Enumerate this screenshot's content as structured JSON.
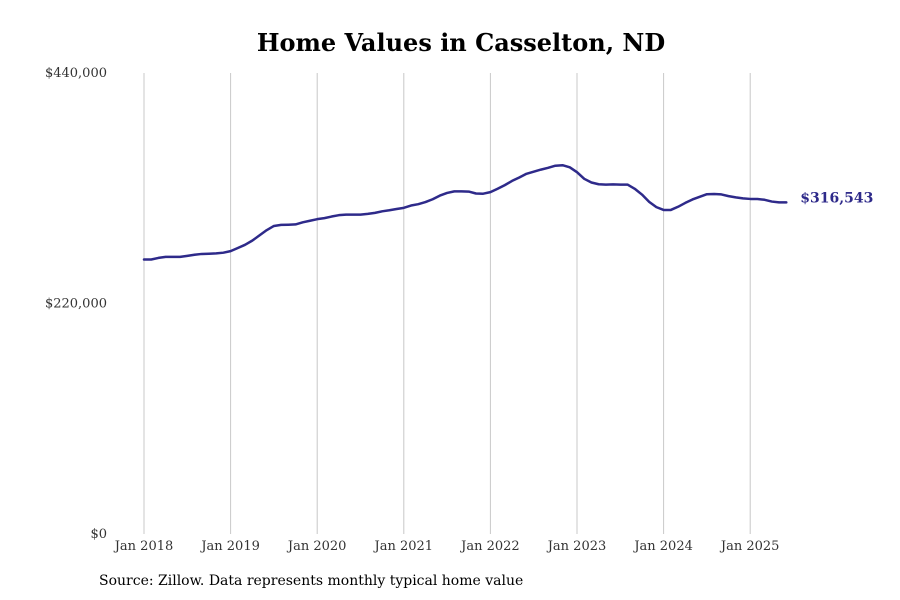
{
  "page": {
    "source_text": "Source: Zillow. Data represents monthly typical home value"
  },
  "chart_data": {
    "type": "line",
    "title": "Home Values in Casselton, ND",
    "xlabel": "",
    "ylabel": "",
    "ylim": [
      0,
      440000
    ],
    "y_ticks": [
      0,
      220000,
      440000
    ],
    "y_tick_labels": [
      "$0",
      "$220,000",
      "$440,000"
    ],
    "x_tick_labels": [
      "Jan 2018",
      "Jan 2019",
      "Jan 2020",
      "Jan 2021",
      "Jan 2022",
      "Jan 2023",
      "Jan 2024",
      "Jan 2025"
    ],
    "x_tick_dates": [
      "2018-01",
      "2019-01",
      "2020-01",
      "2021-01",
      "2022-01",
      "2023-01",
      "2024-01",
      "2025-01"
    ],
    "x_range": [
      "2018-01",
      "2025-06"
    ],
    "grid": "vertical",
    "line_color": "#2e2a8a",
    "grid_color": "#c8c8c8",
    "end_label": "$316,543",
    "series": [
      {
        "x": [
          "2018-01",
          "2018-02",
          "2018-03",
          "2018-04",
          "2018-05",
          "2018-06",
          "2018-07",
          "2018-08",
          "2018-09",
          "2018-10",
          "2018-11",
          "2018-12",
          "2019-01",
          "2019-02",
          "2019-03",
          "2019-04",
          "2019-05",
          "2019-06",
          "2019-07",
          "2019-08",
          "2019-09",
          "2019-10",
          "2019-11",
          "2019-12",
          "2020-01",
          "2020-02",
          "2020-03",
          "2020-04",
          "2020-05",
          "2020-06",
          "2020-07",
          "2020-08",
          "2020-09",
          "2020-10",
          "2020-11",
          "2020-12",
          "2021-01",
          "2021-02",
          "2021-03",
          "2021-04",
          "2021-05",
          "2021-06",
          "2021-07",
          "2021-08",
          "2021-09",
          "2021-10",
          "2021-11",
          "2021-12",
          "2022-01",
          "2022-02",
          "2022-03",
          "2022-04",
          "2022-05",
          "2022-06",
          "2022-07",
          "2022-08",
          "2022-09",
          "2022-10",
          "2022-11",
          "2022-12",
          "2023-01",
          "2023-02",
          "2023-03",
          "2023-04",
          "2023-05",
          "2023-06",
          "2023-07",
          "2023-08",
          "2023-09",
          "2023-10",
          "2023-11",
          "2023-12",
          "2024-01",
          "2024-02",
          "2024-03",
          "2024-04",
          "2024-05",
          "2024-06",
          "2024-07",
          "2024-08",
          "2024-09",
          "2024-10",
          "2024-11",
          "2024-12",
          "2025-01",
          "2025-02",
          "2025-03",
          "2025-04",
          "2025-05",
          "2025-06"
        ],
        "values": [
          262000,
          262000,
          263500,
          264500,
          264500,
          264500,
          265500,
          266500,
          267300,
          267500,
          267800,
          268500,
          270000,
          273000,
          276000,
          280000,
          285000,
          290000,
          294000,
          295000,
          295200,
          295500,
          297500,
          299000,
          300500,
          301500,
          303000,
          304300,
          304800,
          304800,
          304800,
          305500,
          306500,
          308000,
          309000,
          310200,
          311300,
          313500,
          314800,
          316800,
          319500,
          323000,
          325500,
          327000,
          327000,
          326800,
          325000,
          324800,
          326300,
          329500,
          333000,
          337000,
          340300,
          343800,
          345800,
          347800,
          349500,
          351500,
          352000,
          350000,
          345300,
          339000,
          335500,
          333800,
          333500,
          333700,
          333500,
          333500,
          329500,
          324000,
          317000,
          312000,
          309300,
          309300,
          312300,
          316000,
          319300,
          321800,
          324300,
          324500,
          324100,
          322500,
          321300,
          320300,
          319800,
          319700,
          319000,
          317300,
          316543,
          316543
        ]
      }
    ]
  }
}
